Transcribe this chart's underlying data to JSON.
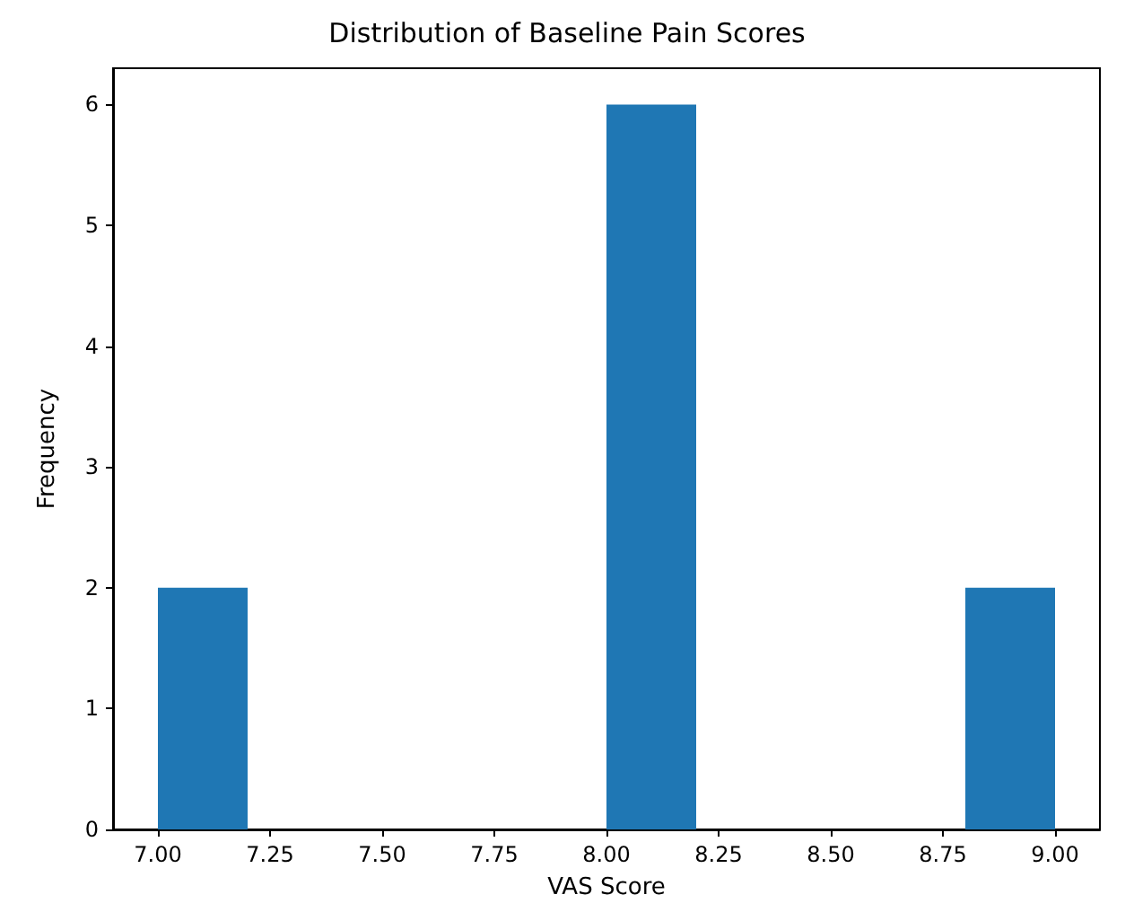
{
  "chart_data": {
    "type": "histogram",
    "title": "Distribution of Baseline Pain Scores",
    "xlabel": "VAS Score",
    "ylabel": "Frequency",
    "bins": [
      7.0,
      7.2,
      7.4,
      7.6,
      7.8,
      8.0,
      8.2,
      8.4,
      8.6,
      8.8,
      9.0
    ],
    "values": [
      2,
      0,
      0,
      0,
      0,
      6,
      0,
      0,
      0,
      2
    ],
    "color": "#1f77b4",
    "xlim": [
      6.9,
      9.1
    ],
    "ylim": [
      0,
      6.3
    ],
    "xticks": [
      {
        "value": 7,
        "label": "7.00"
      },
      {
        "value": 7.25,
        "label": "7.25"
      },
      {
        "value": 7.5,
        "label": "7.50"
      },
      {
        "value": 7.75,
        "label": "7.75"
      },
      {
        "value": 8,
        "label": "8.00"
      },
      {
        "value": 8.25,
        "label": "8.25"
      },
      {
        "value": 8.5,
        "label": "8.50"
      },
      {
        "value": 8.75,
        "label": "8.75"
      },
      {
        "value": 9,
        "label": "9.00"
      }
    ],
    "yticks": [
      0,
      1,
      2,
      3,
      4,
      5,
      6
    ],
    "grid": false
  }
}
